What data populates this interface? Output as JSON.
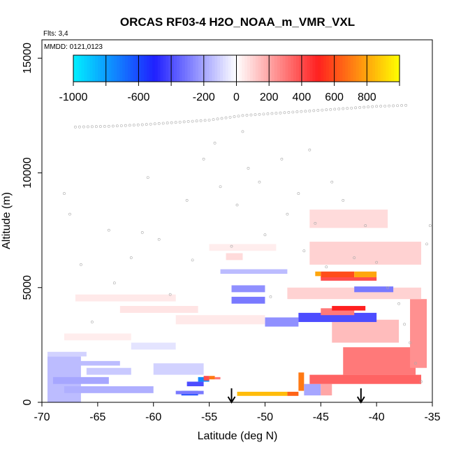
{
  "chart_data": {
    "type": "heatmap",
    "title": "ORCAS RF03-4 H2O_NOAA_m_VMR_VXL",
    "flights_note": "Flts: 3,4",
    "date_note": "MMDD: 0121,0123",
    "xlabel": "Latitude (deg N)",
    "ylabel": "Altitude (m)",
    "xlim": [
      -70,
      -35
    ],
    "ylim": [
      0,
      15800
    ],
    "x_ticks": [
      "-70",
      "-65",
      "-60",
      "-55",
      "-50",
      "-45",
      "-40",
      "-35"
    ],
    "y_ticks": [
      "0",
      "5000",
      "10000",
      "15000"
    ],
    "x_tick_values": [
      -70,
      -65,
      -60,
      -55,
      -50,
      -45,
      -40,
      -35
    ],
    "y_tick_values": [
      0,
      5000,
      10000,
      15000
    ],
    "colorbar": {
      "min": -1000,
      "max": 1000,
      "tick_labels": [
        "-1000",
        "-600",
        "-200",
        "0",
        "200",
        "400",
        "600",
        "800"
      ],
      "tick_values": [
        -1000,
        -600,
        -200,
        0,
        200,
        400,
        600,
        800
      ],
      "colors": [
        "#00f0ff",
        "#2020ff",
        "#ffffff",
        "#ff2020",
        "#ffff00"
      ]
    },
    "markers": [
      -53,
      -41.4
    ],
    "cells": [
      [
        -69.5,
        -66.5,
        0,
        2000,
        -150
      ],
      [
        -69.5,
        -66,
        2000,
        2200,
        -100
      ],
      [
        -69,
        -64,
        800,
        1100,
        -200
      ],
      [
        -69,
        -63,
        1600,
        1800,
        -150
      ],
      [
        -68,
        -60,
        400,
        700,
        -180
      ],
      [
        -66,
        -62,
        1200,
        1500,
        -120
      ],
      [
        -62,
        -58,
        2300,
        2600,
        -60
      ],
      [
        -60,
        -55.5,
        1200,
        1700,
        -100
      ],
      [
        -57,
        -55.5,
        700,
        900,
        -400
      ],
      [
        -56,
        -55,
        900,
        1100,
        -750
      ],
      [
        -57.5,
        -56,
        300,
        500,
        -600
      ],
      [
        -58,
        -55.5,
        350,
        500,
        -300
      ],
      [
        -55.5,
        -55,
        950,
        1150,
        400
      ],
      [
        -55,
        -54.5,
        1000,
        1150,
        700
      ],
      [
        -54.5,
        -54,
        1000,
        1100,
        300
      ],
      [
        -52.5,
        -48,
        280,
        460,
        850
      ],
      [
        -48,
        -47,
        280,
        460,
        650
      ],
      [
        -47,
        -46.5,
        500,
        1300,
        700
      ],
      [
        -46.5,
        -45,
        300,
        800,
        -200
      ],
      [
        -45,
        -44,
        300,
        800,
        200
      ],
      [
        -46,
        -36,
        800,
        1200,
        350
      ],
      [
        -43,
        -36.5,
        1200,
        2400,
        300
      ],
      [
        -37,
        -35.5,
        1500,
        4500,
        250
      ],
      [
        -44,
        -38,
        2600,
        3600,
        150
      ],
      [
        -50,
        -47,
        3300,
        3700,
        -250
      ],
      [
        -47,
        -40,
        3500,
        3900,
        -400
      ],
      [
        -45,
        -42,
        3800,
        4100,
        300
      ],
      [
        -44,
        -41,
        4000,
        4200,
        500
      ],
      [
        -53,
        -50,
        4300,
        4600,
        -300
      ],
      [
        -48,
        -36,
        4500,
        5000,
        100
      ],
      [
        -53,
        -50,
        4800,
        5100,
        -250
      ],
      [
        -45,
        -42,
        5400,
        5700,
        600
      ],
      [
        -45.5,
        -45,
        5500,
        5700,
        800
      ],
      [
        -42,
        -40,
        5450,
        5700,
        800
      ],
      [
        -45,
        -40,
        5300,
        5450,
        400
      ],
      [
        -42,
        -38.5,
        4800,
        5050,
        -300
      ],
      [
        -45,
        -40,
        6400,
        6700,
        350
      ],
      [
        -46,
        -36,
        6000,
        7000,
        100
      ],
      [
        -46,
        -39,
        7600,
        8400,
        80
      ],
      [
        -54,
        -48,
        5600,
        5800,
        -150
      ],
      [
        -53.5,
        -52,
        6200,
        6500,
        80
      ],
      [
        -63,
        -56,
        3900,
        4200,
        60
      ],
      [
        -67,
        -58,
        4400,
        4700,
        50
      ],
      [
        -58,
        -50,
        3400,
        3800,
        50
      ],
      [
        -68,
        -62,
        2700,
        3000,
        40
      ],
      [
        -55,
        -49,
        6600,
        6900,
        40
      ]
    ],
    "points_flight_level": [
      [
        -67,
        12000
      ],
      [
        -64,
        12030
      ],
      [
        -61,
        12100
      ],
      [
        -58,
        12200
      ],
      [
        -55,
        12300
      ],
      [
        -52,
        12500
      ],
      [
        -49,
        12600
      ],
      [
        -46,
        12700
      ],
      [
        -43,
        12800
      ],
      [
        -40,
        12900
      ],
      [
        -37,
        12950
      ]
    ],
    "points_scattered": [
      [
        -68,
        9100
      ],
      [
        -67.5,
        8200
      ],
      [
        -66.5,
        6000
      ],
      [
        -65.5,
        3500
      ],
      [
        -64,
        7500
      ],
      [
        -63.5,
        5200
      ],
      [
        -62,
        6300
      ],
      [
        -61,
        7400
      ],
      [
        -60.5,
        9800
      ],
      [
        -59.5,
        7100
      ],
      [
        -58.5,
        4700
      ],
      [
        -57,
        8800
      ],
      [
        -56.5,
        6200
      ],
      [
        -55.5,
        10600
      ],
      [
        -54.5,
        11300
      ],
      [
        -54,
        9400
      ],
      [
        -53,
        6800
      ],
      [
        -52.5,
        8600
      ],
      [
        -52,
        11800
      ],
      [
        -51.5,
        10200
      ],
      [
        -50.5,
        9600
      ],
      [
        -50,
        7300
      ],
      [
        -49.5,
        4600
      ],
      [
        -48.5,
        10600
      ],
      [
        -48,
        8200
      ],
      [
        -47,
        9100
      ],
      [
        -46.5,
        6600
      ],
      [
        -46,
        11000
      ],
      [
        -45.5,
        7800
      ],
      [
        -44.5,
        5900
      ],
      [
        -44,
        9600
      ],
      [
        -43,
        8800
      ],
      [
        -42,
        6300
      ],
      [
        -41,
        7700
      ],
      [
        -40,
        6100
      ],
      [
        -39,
        5000
      ],
      [
        -38,
        4300
      ],
      [
        -37.5,
        3400
      ],
      [
        -37,
        2600
      ],
      [
        -36.5,
        1700
      ],
      [
        -36,
        900
      ],
      [
        -35.5,
        6900
      ],
      [
        -35.2,
        7700
      ]
    ]
  }
}
